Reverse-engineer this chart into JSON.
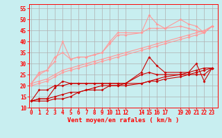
{
  "xlabel": "Vent moyen/en rafales ( km/h )",
  "xlabel_fontsize": 6.5,
  "bg_color": "#c8eef0",
  "grid_color": "#b0b0b0",
  "xlim": [
    -0.3,
    23.7
  ],
  "ylim": [
    10,
    57
  ],
  "yticks": [
    10,
    15,
    20,
    25,
    30,
    35,
    40,
    45,
    50,
    55
  ],
  "x_ticks": [
    0,
    1,
    2,
    3,
    4,
    5,
    6,
    7,
    8,
    9,
    10,
    11,
    12,
    14,
    15,
    16,
    17,
    19,
    20,
    21,
    22,
    23
  ],
  "x_labels": [
    "0",
    "1",
    "2",
    "3",
    "4",
    "5",
    "6",
    "7",
    "8",
    "9",
    "10",
    "11",
    "12",
    "14",
    "15",
    "16",
    "17",
    "19",
    "20",
    "21",
    "22",
    "23"
  ],
  "tick_fontsize": 5.5,
  "lines_light": [
    {
      "x": [
        0,
        1,
        2,
        3,
        4,
        5,
        6,
        7,
        8,
        9,
        10,
        11,
        12,
        14,
        15,
        16,
        17,
        19,
        20,
        21,
        22,
        23
      ],
      "y": [
        21,
        25,
        27,
        31,
        40,
        32,
        33,
        33,
        34,
        35,
        40,
        44,
        44,
        44,
        52,
        48,
        46,
        50,
        48,
        47,
        44,
        47
      ],
      "color": "#ff9999",
      "lw": 0.8,
      "marker": "D",
      "ms": 2.0
    },
    {
      "x": [
        0,
        1,
        2,
        3,
        4,
        5,
        6,
        7,
        8,
        9,
        10,
        11,
        12,
        14,
        15,
        16,
        17,
        19,
        20,
        21,
        22,
        23
      ],
      "y": [
        21,
        26,
        27,
        33,
        35,
        32,
        33,
        33,
        34,
        35,
        39,
        43,
        43,
        44,
        46,
        46,
        46,
        47,
        46,
        45,
        44,
        47
      ],
      "color": "#ff9999",
      "lw": 0.8,
      "marker": "D",
      "ms": 2.0
    },
    {
      "x": [
        0,
        1,
        2,
        3,
        4,
        5,
        6,
        7,
        8,
        9,
        10,
        11,
        12,
        14,
        15,
        16,
        17,
        19,
        20,
        21,
        22,
        23
      ],
      "y": [
        20,
        21,
        22,
        24,
        26,
        27,
        28,
        29,
        30,
        31,
        32,
        33,
        34,
        36,
        37,
        38,
        39,
        41,
        42,
        43,
        44,
        47
      ],
      "color": "#ff9999",
      "lw": 0.8,
      "marker": "D",
      "ms": 2.0
    },
    {
      "x": [
        0,
        1,
        2,
        3,
        4,
        5,
        6,
        7,
        8,
        9,
        10,
        11,
        12,
        14,
        15,
        16,
        17,
        19,
        20,
        21,
        22,
        23
      ],
      "y": [
        21,
        22,
        23,
        25,
        27,
        28,
        29,
        30,
        31,
        32,
        33,
        34,
        35,
        37,
        38,
        39,
        40,
        42,
        43,
        44,
        45,
        47
      ],
      "color": "#ff9999",
      "lw": 0.8,
      "marker": "D",
      "ms": 2.0
    }
  ],
  "lines_dark": [
    {
      "x": [
        0,
        1,
        2,
        3,
        4,
        5,
        6,
        7,
        8,
        9,
        10,
        11,
        12,
        14,
        15,
        16,
        17,
        19,
        20,
        21,
        22,
        23
      ],
      "y": [
        13,
        14,
        14,
        19,
        22,
        21,
        21,
        21,
        21,
        21,
        21,
        21,
        21,
        26,
        33,
        29,
        26,
        26,
        26,
        30,
        22,
        28
      ],
      "color": "#cc0000",
      "lw": 0.8,
      "marker": "D",
      "ms": 2.0
    },
    {
      "x": [
        0,
        1,
        2,
        3,
        4,
        5,
        6,
        7,
        8,
        9,
        10,
        11,
        12,
        14,
        15,
        16,
        17,
        19,
        20,
        21,
        22,
        23
      ],
      "y": [
        13,
        18,
        18,
        20,
        20,
        21,
        21,
        21,
        21,
        21,
        21,
        21,
        21,
        25,
        26,
        25,
        25,
        25,
        25,
        25,
        25,
        28
      ],
      "color": "#cc0000",
      "lw": 0.8,
      "marker": "D",
      "ms": 2.0
    },
    {
      "x": [
        0,
        1,
        2,
        3,
        4,
        5,
        6,
        7,
        8,
        9,
        10,
        11,
        12,
        14,
        15,
        16,
        17,
        19,
        20,
        21,
        22,
        23
      ],
      "y": [
        13,
        13,
        13,
        14,
        14,
        15,
        17,
        18,
        18,
        18,
        20,
        20,
        20,
        21,
        22,
        23,
        24,
        25,
        26,
        27,
        28,
        28
      ],
      "color": "#cc0000",
      "lw": 0.8,
      "marker": "D",
      "ms": 2.0
    },
    {
      "x": [
        0,
        1,
        2,
        3,
        4,
        5,
        6,
        7,
        8,
        9,
        10,
        11,
        12,
        14,
        15,
        16,
        17,
        19,
        20,
        21,
        22,
        23
      ],
      "y": [
        13,
        14,
        14,
        15,
        16,
        17,
        17,
        18,
        19,
        20,
        20,
        20,
        21,
        21,
        22,
        22,
        23,
        24,
        25,
        26,
        27,
        28
      ],
      "color": "#cc0000",
      "lw": 0.8,
      "marker": "D",
      "ms": 2.0
    }
  ]
}
